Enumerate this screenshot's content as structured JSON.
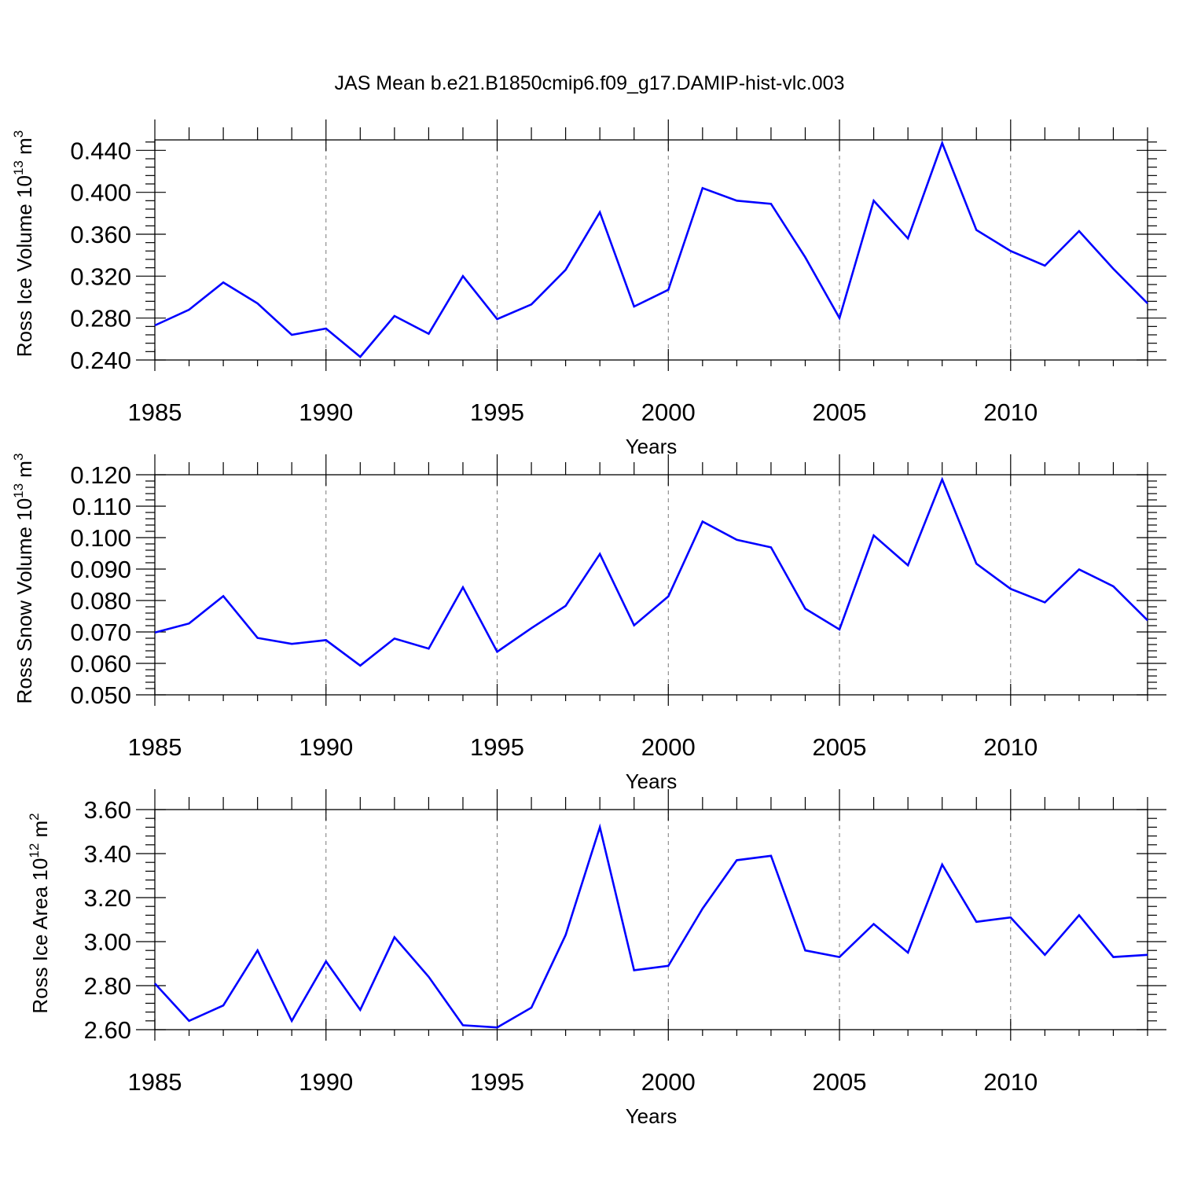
{
  "title": "JAS Mean b.e21.B1850cmip6.f09_g17.DAMIP-hist-vlc.003",
  "line_color": "#0000ff",
  "chart_data": [
    {
      "type": "line",
      "ylabel": "Ross Ice Volume 10",
      "ylabel_exp": "13",
      "ylabel_unit": " m",
      "ylabel_unit_exp": "3",
      "xlabel": "Years",
      "xlim": [
        1985,
        2014
      ],
      "ylim": [
        0.24,
        0.45
      ],
      "x_ticks": [
        "1985",
        "1990",
        "1995",
        "2000",
        "2005",
        "2010"
      ],
      "y_ticks": [
        "0.240",
        "0.280",
        "0.320",
        "0.360",
        "0.400",
        "0.440"
      ],
      "grid_x": true,
      "x": [
        1985,
        1986,
        1987,
        1988,
        1989,
        1990,
        1991,
        1992,
        1993,
        1994,
        1995,
        1996,
        1997,
        1998,
        1999,
        2000,
        2001,
        2002,
        2003,
        2004,
        2005,
        2006,
        2007,
        2008,
        2009,
        2010,
        2011,
        2012,
        2013,
        2014
      ],
      "values": [
        0.273,
        0.288,
        0.314,
        0.294,
        0.264,
        0.27,
        0.243,
        0.282,
        0.265,
        0.32,
        0.279,
        0.293,
        0.326,
        0.381,
        0.291,
        0.307,
        0.404,
        0.392,
        0.389,
        0.338,
        0.28,
        0.392,
        0.356,
        0.447,
        0.364,
        0.344,
        0.33,
        0.363,
        0.327,
        0.294
      ]
    },
    {
      "type": "line",
      "ylabel": "Ross Snow Volume 10",
      "ylabel_exp": "13",
      "ylabel_unit": " m",
      "ylabel_unit_exp": "3",
      "xlabel": "Years",
      "xlim": [
        1985,
        2014
      ],
      "ylim": [
        0.05,
        0.12
      ],
      "x_ticks": [
        "1985",
        "1990",
        "1995",
        "2000",
        "2005",
        "2010"
      ],
      "y_ticks": [
        "0.050",
        "0.060",
        "0.070",
        "0.080",
        "0.090",
        "0.100",
        "0.110",
        "0.120"
      ],
      "grid_x": true,
      "x": [
        1985,
        1986,
        1987,
        1988,
        1989,
        1990,
        1991,
        1992,
        1993,
        1994,
        1995,
        1996,
        1997,
        1998,
        1999,
        2000,
        2001,
        2002,
        2003,
        2004,
        2005,
        2006,
        2007,
        2008,
        2009,
        2010,
        2011,
        2012,
        2013,
        2014
      ],
      "values": [
        0.0698,
        0.0727,
        0.0814,
        0.0681,
        0.0662,
        0.0674,
        0.0593,
        0.0679,
        0.0647,
        0.0842,
        0.0637,
        0.0712,
        0.0783,
        0.0948,
        0.0721,
        0.0813,
        0.1051,
        0.0993,
        0.0969,
        0.0774,
        0.0708,
        0.1007,
        0.0912,
        0.1185,
        0.0917,
        0.0837,
        0.0794,
        0.0899,
        0.0845,
        0.0737
      ]
    },
    {
      "type": "line",
      "ylabel": "Ross Ice Area 10",
      "ylabel_exp": "12",
      "ylabel_unit": " m",
      "ylabel_unit_exp": "2",
      "xlabel": "Years",
      "xlim": [
        1985,
        2014
      ],
      "ylim": [
        2.6,
        3.6
      ],
      "x_ticks": [
        "1985",
        "1990",
        "1995",
        "2000",
        "2005",
        "2010"
      ],
      "y_ticks": [
        "2.60",
        "2.80",
        "3.00",
        "3.20",
        "3.40",
        "3.60"
      ],
      "grid_x": true,
      "x": [
        1985,
        1986,
        1987,
        1988,
        1989,
        1990,
        1991,
        1992,
        1993,
        1994,
        1995,
        1996,
        1997,
        1998,
        1999,
        2000,
        2001,
        2002,
        2003,
        2004,
        2005,
        2006,
        2007,
        2008,
        2009,
        2010,
        2011,
        2012,
        2013,
        2014
      ],
      "values": [
        2.81,
        2.64,
        2.71,
        2.96,
        2.64,
        2.91,
        2.69,
        3.02,
        2.84,
        2.62,
        2.61,
        2.7,
        3.03,
        3.52,
        2.87,
        2.89,
        3.15,
        3.37,
        3.39,
        2.96,
        2.93,
        3.08,
        2.95,
        3.35,
        3.09,
        3.11,
        2.94,
        3.12,
        2.93,
        2.94
      ]
    }
  ]
}
